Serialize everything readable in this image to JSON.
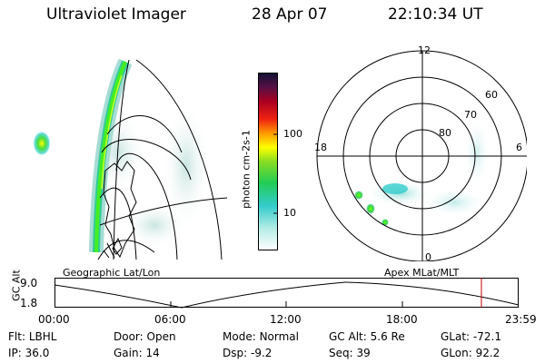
{
  "header": {
    "title": "Ultraviolet Imager",
    "date": "28 Apr 07",
    "time": "22:10:34 UT"
  },
  "colorbar": {
    "label": "photon cm-2s-1",
    "ticks": [
      "100",
      "10"
    ]
  },
  "polar_plot": {
    "mlt_labels": {
      "top": "12",
      "left": "18",
      "right": "6",
      "bottom": "0"
    },
    "lat_labels": [
      "60",
      "70",
      "80"
    ]
  },
  "map_panel": {
    "projection_label": "Geographic Lat/Lon"
  },
  "apex_label": "Apex MLat/MLT",
  "altitude_chart": {
    "axis_label": "GC Alt",
    "y_ticks": [
      "9.0",
      "1.8"
    ],
    "x_ticks": [
      "00:00",
      "06:00",
      "12:00",
      "18:00",
      "23:59"
    ],
    "current_time_marker_color": "#c00000"
  },
  "info": {
    "filter": {
      "label": "Flt:",
      "value": "LBHL"
    },
    "door": {
      "label": "Door:",
      "value": "Open"
    },
    "mode": {
      "label": "Mode:",
      "value": "Normal"
    },
    "gc_alt": {
      "label": "GC Alt:",
      "value": "5.6 Re"
    },
    "glat": {
      "label": "GLat:",
      "value": "-72.1"
    },
    "ip": {
      "label": "IP:",
      "value": "36.0"
    },
    "gain": {
      "label": "Gain:",
      "value": "14"
    },
    "dsp": {
      "label": "Dsp:",
      "value": "-9.2"
    },
    "seq": {
      "label": "Seq:",
      "value": "39"
    },
    "glon": {
      "label": "GLon:",
      "value": "92.2"
    }
  }
}
